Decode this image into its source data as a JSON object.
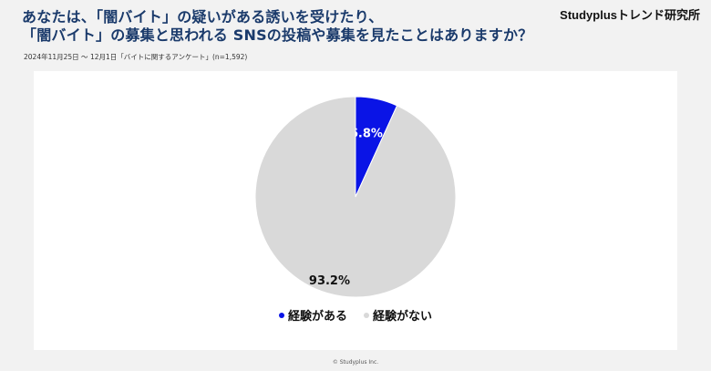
{
  "header": {
    "title_line1": "あなたは、「闇バイト」の疑いがある誘いを受けたり、",
    "title_line2": "「闇バイト」の募集と思われる SNSの投稿や募集を見たことはありますか？",
    "brand": "Studyplusトレンド研究所",
    "subtitle": "2024年11月25日 〜 12月1日「バイトに関するアンケート」(n=1,592)"
  },
  "footer": {
    "copyright": "© Studyplus Inc."
  },
  "chart_data": {
    "type": "pie",
    "categories": [
      "経験がある",
      "経験がない"
    ],
    "values": [
      6.8,
      93.2
    ],
    "unit": "%",
    "data_labels": [
      "6.8%",
      "93.2%"
    ],
    "colors": [
      "#0a14e6",
      "#d9d9d9"
    ],
    "start_angle": "12 o'clock",
    "direction": "clockwise",
    "legend_position": "bottom"
  }
}
